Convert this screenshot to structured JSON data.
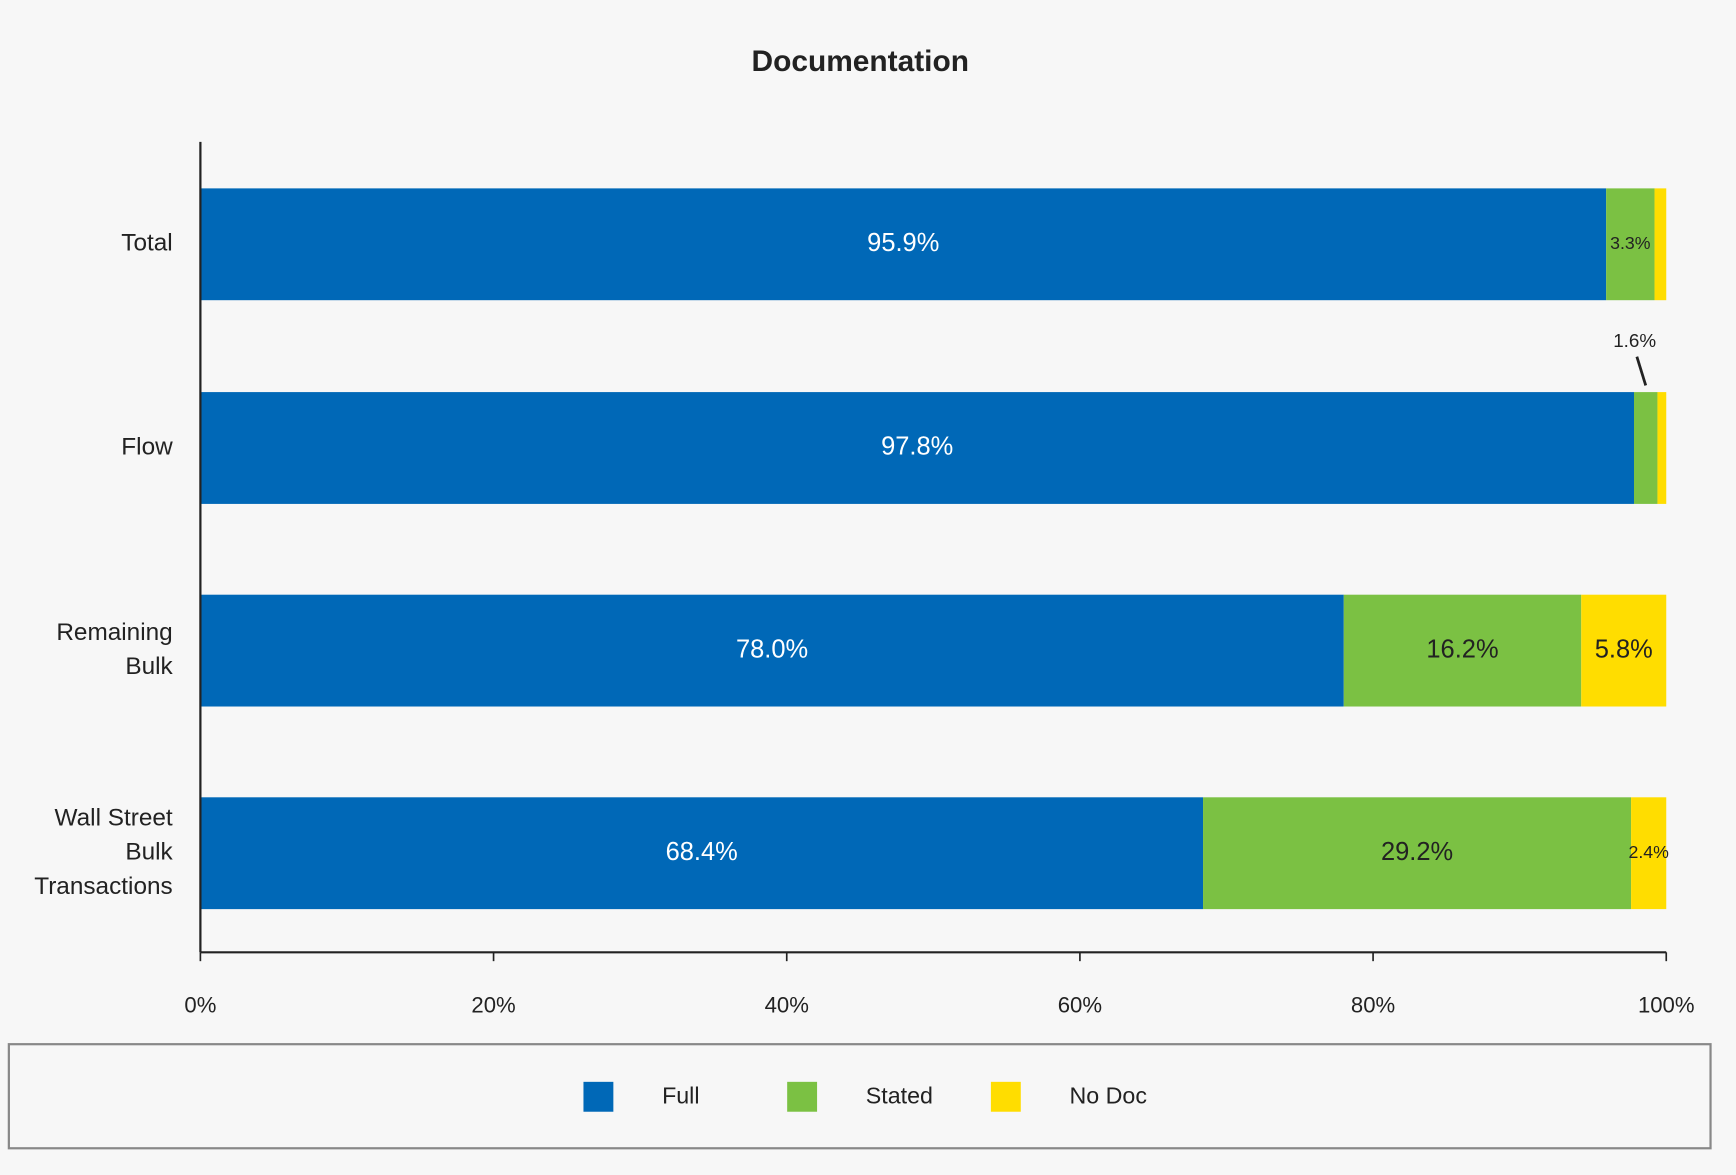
{
  "chart_data": {
    "type": "stacked-barh",
    "title": "Documentation",
    "categories": [
      [
        "Total"
      ],
      [
        "Flow"
      ],
      [
        "Remaining",
        "Bulk"
      ],
      [
        "Wall Street",
        "Bulk",
        "Transactions"
      ]
    ],
    "series": [
      {
        "name": "Full",
        "color": "#0068b7",
        "label_color": "#ffffff",
        "values": [
          95.9,
          97.8,
          78.0,
          68.4
        ],
        "value_labels": [
          "95.9%",
          "97.8%",
          "78.0%",
          "68.4%"
        ]
      },
      {
        "name": "Stated",
        "color": "#7bc143",
        "label_color": "#222222",
        "values": [
          3.3,
          1.6,
          16.2,
          29.2
        ],
        "value_labels": [
          "3.3%",
          "1.6%",
          "16.2%",
          "29.2%"
        ]
      },
      {
        "name": "No Doc",
        "color": "#ffdd00",
        "label_color": "#222222",
        "values": [
          0.8,
          0.6,
          5.8,
          2.4
        ],
        "value_labels": [
          null,
          null,
          "5.8%",
          "2.4%"
        ]
      }
    ],
    "xlim": [
      0,
      100
    ],
    "xticks": [
      {
        "value": 0,
        "label": "0%"
      },
      {
        "value": 20,
        "label": "20%"
      },
      {
        "value": 40,
        "label": "40%"
      },
      {
        "value": 60,
        "label": "60%"
      },
      {
        "value": 80,
        "label": "80%"
      },
      {
        "value": 100,
        "label": "100%"
      }
    ],
    "legend": "bottom"
  }
}
